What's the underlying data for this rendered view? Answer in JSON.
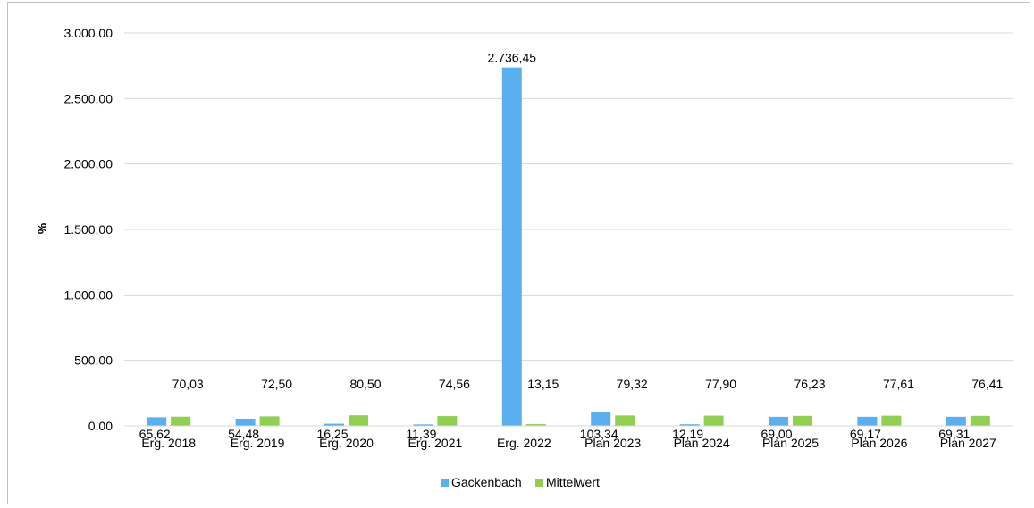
{
  "chart_data": {
    "type": "bar",
    "ylabel": "%",
    "ylim": [
      0,
      3000
    ],
    "yticks": [
      "0,00",
      "500,00",
      "1.000,00",
      "1.500,00",
      "2.000,00",
      "2.500,00",
      "3.000,00"
    ],
    "ytick_values": [
      0,
      500,
      1000,
      1500,
      2000,
      2500,
      3000
    ],
    "grid": true,
    "legend_position": "bottom",
    "categories": [
      "Erg. 2018",
      "Erg. 2019",
      "Erg. 2020",
      "Erg. 2021",
      "Erg. 2022",
      "Plan 2023",
      "Plan 2024",
      "Plan 2025",
      "Plan 2026",
      "Plan 2027"
    ],
    "series": [
      {
        "name": "Gackenbach",
        "color": "#5aafef",
        "values": [
          65.62,
          54.48,
          16.25,
          11.39,
          2736.45,
          103.34,
          12.19,
          69.0,
          69.17,
          69.31
        ],
        "labels": [
          "65,62",
          "54,48",
          "16,25",
          "11,39",
          "2.736,45",
          "103,34",
          "12,19",
          "69,00",
          "69,17",
          "69,31"
        ]
      },
      {
        "name": "Mittelwert",
        "color": "#8fd14f",
        "values": [
          70.03,
          72.5,
          80.5,
          74.56,
          13.15,
          79.32,
          77.9,
          76.23,
          77.61,
          76.41
        ],
        "labels": [
          "70,03",
          "72,50",
          "80,50",
          "74,56",
          "13,15",
          "79,32",
          "77,90",
          "76,23",
          "77,61",
          "76,41"
        ]
      }
    ]
  }
}
